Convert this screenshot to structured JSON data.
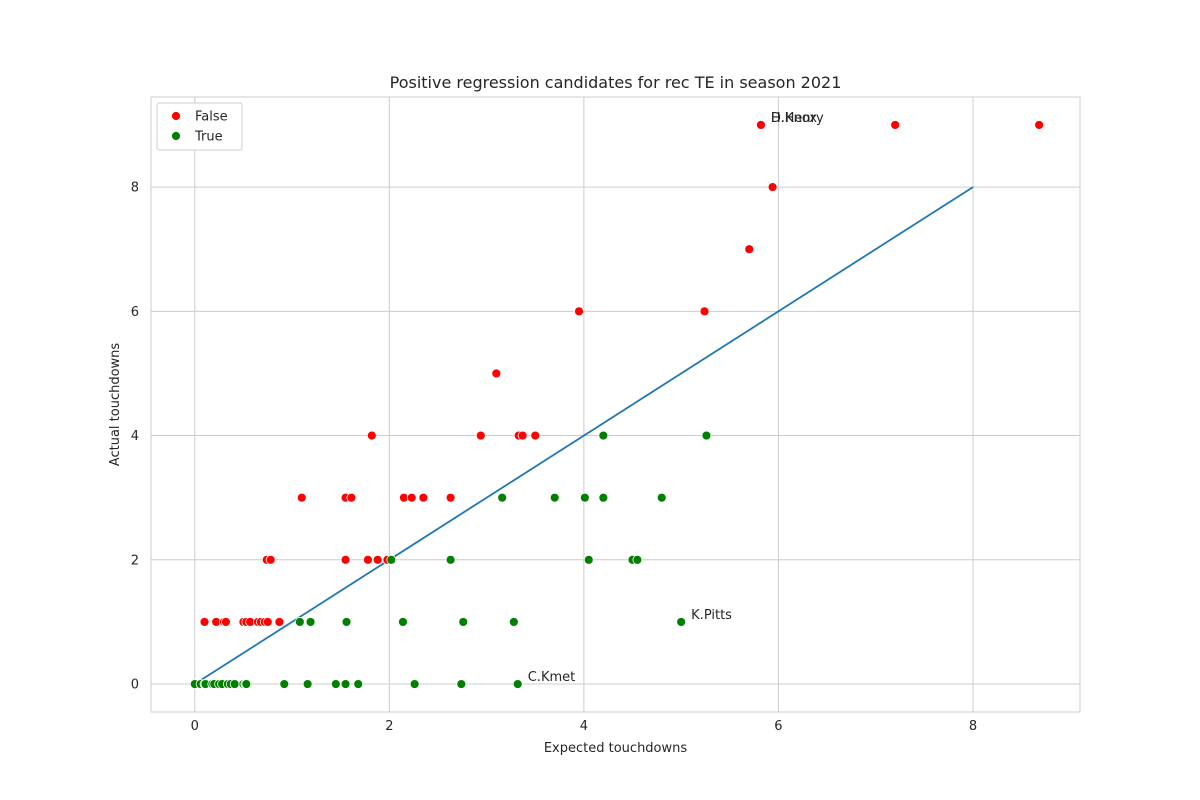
{
  "chart_data": {
    "type": "scatter",
    "title": "Positive regression candidates for rec TE in season 2021",
    "xlabel": "Expected touchdowns",
    "ylabel": "Actual touchdowns",
    "xlim": [
      -0.45,
      9.1
    ],
    "ylim": [
      -0.45,
      9.45
    ],
    "xticks": [
      0,
      2,
      4,
      6,
      8
    ],
    "yticks": [
      0,
      2,
      4,
      6,
      8
    ],
    "grid": true,
    "legend_position": "top-left",
    "series": [
      {
        "name": "False",
        "color": "#ff0000",
        "points": [
          [
            0.1,
            1
          ],
          [
            0.22,
            1
          ],
          [
            0.3,
            1
          ],
          [
            0.32,
            1
          ],
          [
            0.5,
            1
          ],
          [
            0.53,
            1
          ],
          [
            0.57,
            1
          ],
          [
            0.65,
            1
          ],
          [
            0.68,
            1
          ],
          [
            0.72,
            1
          ],
          [
            0.75,
            1
          ],
          [
            0.87,
            1
          ],
          [
            0.74,
            2
          ],
          [
            0.78,
            2
          ],
          [
            1.55,
            2
          ],
          [
            1.78,
            2
          ],
          [
            1.88,
            2
          ],
          [
            1.98,
            2
          ],
          [
            1.1,
            3
          ],
          [
            1.55,
            3
          ],
          [
            1.61,
            3
          ],
          [
            2.15,
            3
          ],
          [
            2.23,
            3
          ],
          [
            2.35,
            3
          ],
          [
            2.63,
            3
          ],
          [
            1.82,
            4
          ],
          [
            2.94,
            4
          ],
          [
            3.33,
            4
          ],
          [
            3.37,
            4
          ],
          [
            3.5,
            4
          ],
          [
            3.1,
            5
          ],
          [
            3.95,
            6
          ],
          [
            5.24,
            6
          ],
          [
            5.7,
            7
          ],
          [
            5.94,
            8
          ],
          [
            5.82,
            9
          ],
          [
            7.2,
            9
          ],
          [
            8.68,
            9
          ]
        ]
      },
      {
        "name": "True",
        "color": "#008000",
        "points": [
          [
            0.0,
            0
          ],
          [
            0.06,
            0
          ],
          [
            0.1,
            0
          ],
          [
            0.11,
            0
          ],
          [
            0.18,
            0
          ],
          [
            0.2,
            0
          ],
          [
            0.25,
            0
          ],
          [
            0.28,
            0
          ],
          [
            0.34,
            0
          ],
          [
            0.37,
            0
          ],
          [
            0.41,
            0
          ],
          [
            0.5,
            0
          ],
          [
            0.52,
            0
          ],
          [
            0.53,
            0
          ],
          [
            0.92,
            0
          ],
          [
            1.16,
            0
          ],
          [
            1.45,
            0
          ],
          [
            1.55,
            0
          ],
          [
            1.68,
            0
          ],
          [
            2.26,
            0
          ],
          [
            2.74,
            0
          ],
          [
            3.32,
            0
          ],
          [
            1.08,
            1
          ],
          [
            1.19,
            1
          ],
          [
            1.56,
            1
          ],
          [
            2.14,
            1
          ],
          [
            2.76,
            1
          ],
          [
            3.28,
            1
          ],
          [
            5.0,
            1
          ],
          [
            2.02,
            2
          ],
          [
            2.63,
            2
          ],
          [
            4.05,
            2
          ],
          [
            4.5,
            2
          ],
          [
            4.55,
            2
          ],
          [
            3.16,
            3
          ],
          [
            3.7,
            3
          ],
          [
            4.01,
            3
          ],
          [
            4.2,
            3
          ],
          [
            4.8,
            3
          ],
          [
            4.2,
            4
          ],
          [
            5.26,
            4
          ]
        ]
      }
    ],
    "reference_line": {
      "from": [
        0,
        0
      ],
      "to": [
        8,
        8
      ],
      "color": "#1f77b4"
    },
    "annotations": [
      {
        "text": "D.Knox",
        "x": 5.82,
        "y": 9
      },
      {
        "text": "H.Henry",
        "x": 5.82,
        "y": 9
      },
      {
        "text": "K.Pitts",
        "x": 5.0,
        "y": 1
      },
      {
        "text": "C.Kmet",
        "x": 3.32,
        "y": 0
      }
    ]
  }
}
